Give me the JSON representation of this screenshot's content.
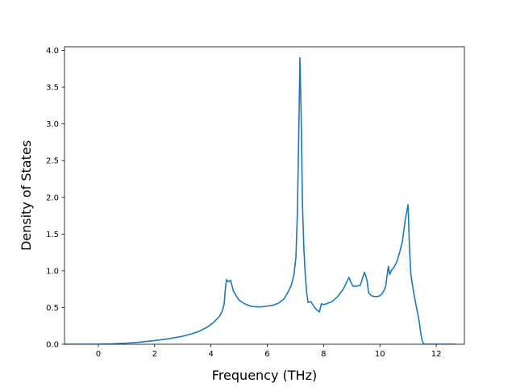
{
  "chart_data": {
    "type": "line",
    "title": "",
    "xlabel": "Frequency (THz)",
    "ylabel": "Density of States",
    "xlim": [
      -1.2,
      13.0
    ],
    "ylim": [
      0.0,
      4.05
    ],
    "xticks": [
      0,
      2,
      4,
      6,
      8,
      10,
      12
    ],
    "yticks": [
      0.0,
      0.5,
      1.0,
      1.5,
      2.0,
      2.5,
      3.0,
      3.5,
      4.0
    ],
    "ytick_labels": [
      "0.0",
      "0.5",
      "1.0",
      "1.5",
      "2.0",
      "2.5",
      "3.0",
      "3.5",
      "4.0"
    ],
    "grid": false,
    "legend": "none",
    "series": [
      {
        "color": "#1f77b4",
        "x": [
          -1.2,
          -0.5,
          0.0,
          0.5,
          1.0,
          1.5,
          2.0,
          2.5,
          3.0,
          3.3,
          3.6,
          3.9,
          4.1,
          4.3,
          4.4,
          4.47,
          4.5,
          4.55,
          4.62,
          4.7,
          4.8,
          5.0,
          5.2,
          5.4,
          5.6,
          5.8,
          6.0,
          6.2,
          6.4,
          6.6,
          6.75,
          6.85,
          6.95,
          7.02,
          7.07,
          7.12,
          7.16,
          7.2,
          7.25,
          7.3,
          7.35,
          7.4,
          7.45,
          7.55,
          7.65,
          7.75,
          7.85,
          7.92,
          8.0,
          8.1,
          8.3,
          8.5,
          8.7,
          8.9,
          9.0,
          9.05,
          9.15,
          9.3,
          9.4,
          9.45,
          9.5,
          9.55,
          9.6,
          9.7,
          9.8,
          9.9,
          10.0,
          10.1,
          10.2,
          10.3,
          10.35,
          10.4,
          10.5,
          10.6,
          10.7,
          10.8,
          10.9,
          11.0,
          11.05,
          11.1,
          11.2,
          11.3,
          11.4,
          11.45,
          11.5,
          11.55,
          11.6,
          12.0,
          12.7
        ],
        "y": [
          0.0,
          0.0,
          0.0,
          0.005,
          0.015,
          0.03,
          0.05,
          0.075,
          0.11,
          0.14,
          0.18,
          0.24,
          0.3,
          0.38,
          0.45,
          0.55,
          0.7,
          0.88,
          0.85,
          0.87,
          0.72,
          0.6,
          0.55,
          0.52,
          0.51,
          0.51,
          0.52,
          0.53,
          0.56,
          0.62,
          0.72,
          0.8,
          0.95,
          1.2,
          1.8,
          2.9,
          3.9,
          3.2,
          1.9,
          1.3,
          0.95,
          0.7,
          0.57,
          0.58,
          0.52,
          0.47,
          0.44,
          0.55,
          0.54,
          0.55,
          0.58,
          0.65,
          0.75,
          0.91,
          0.82,
          0.79,
          0.79,
          0.8,
          0.92,
          0.98,
          0.93,
          0.85,
          0.7,
          0.66,
          0.65,
          0.65,
          0.66,
          0.7,
          0.78,
          1.06,
          0.95,
          1.0,
          1.05,
          1.12,
          1.25,
          1.4,
          1.7,
          1.9,
          1.3,
          0.95,
          0.7,
          0.5,
          0.3,
          0.15,
          0.05,
          0.01,
          0.0,
          0.0,
          0.0
        ]
      }
    ]
  }
}
